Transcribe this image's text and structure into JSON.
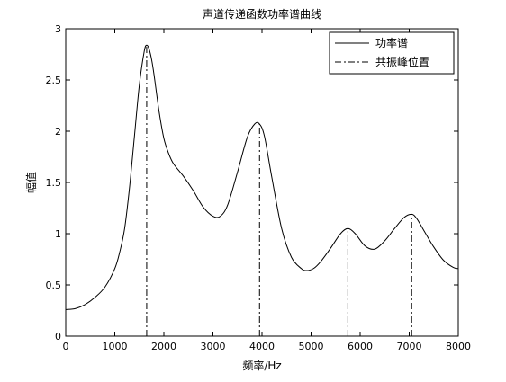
{
  "chart_data": {
    "type": "line",
    "title": "声道传递函数功率谱曲线",
    "xlabel": "频率/Hz",
    "ylabel": "幅值",
    "xlim": [
      0,
      8000
    ],
    "ylim": [
      0,
      3
    ],
    "x_ticks": [
      0,
      1000,
      2000,
      3000,
      4000,
      5000,
      6000,
      7000,
      8000
    ],
    "x_tick_labels": [
      "0",
      "1000",
      "2000",
      "3000",
      "4000",
      "5000",
      "6000",
      "7000",
      "8000"
    ],
    "y_ticks": [
      0,
      0.5,
      1,
      1.5,
      2,
      2.5,
      3
    ],
    "y_tick_labels": [
      "0",
      "0.5",
      "1",
      "1.5",
      "2",
      "2.5",
      "3"
    ],
    "grid": false,
    "legend_position": "top-right",
    "series": [
      {
        "name": "功率谱",
        "style": "solid",
        "color": "#000000",
        "x": [
          0,
          200,
          400,
          600,
          800,
          1000,
          1100,
          1200,
          1300,
          1400,
          1500,
          1600,
          1650,
          1700,
          1750,
          1800,
          1900,
          2000,
          2100,
          2200,
          2400,
          2600,
          2800,
          3000,
          3150,
          3300,
          3500,
          3700,
          3850,
          3950,
          4050,
          4200,
          4400,
          4600,
          4800,
          4900,
          5050,
          5200,
          5400,
          5600,
          5750,
          5900,
          6100,
          6300,
          6500,
          6700,
          6900,
          7050,
          7150,
          7300,
          7500,
          7700,
          7900,
          8000
        ],
        "y": [
          0.26,
          0.27,
          0.31,
          0.38,
          0.48,
          0.66,
          0.82,
          1.05,
          1.45,
          1.95,
          2.45,
          2.78,
          2.84,
          2.8,
          2.7,
          2.55,
          2.2,
          1.93,
          1.78,
          1.68,
          1.56,
          1.42,
          1.26,
          1.17,
          1.17,
          1.28,
          1.6,
          1.94,
          2.07,
          2.07,
          1.95,
          1.55,
          1.05,
          0.77,
          0.66,
          0.64,
          0.66,
          0.73,
          0.86,
          1.0,
          1.05,
          1.0,
          0.88,
          0.85,
          0.93,
          1.05,
          1.16,
          1.19,
          1.15,
          1.03,
          0.87,
          0.74,
          0.67,
          0.66
        ]
      },
      {
        "name": "共振峰位置",
        "style": "dashdot",
        "color": "#000000",
        "segments": [
          {
            "x": 1650,
            "y": [
              0,
              2.84
            ]
          },
          {
            "x": 3950,
            "y": [
              0,
              2.07
            ]
          },
          {
            "x": 5750,
            "y": [
              0,
              1.05
            ]
          },
          {
            "x": 7050,
            "y": [
              0,
              1.19
            ]
          }
        ]
      }
    ]
  }
}
